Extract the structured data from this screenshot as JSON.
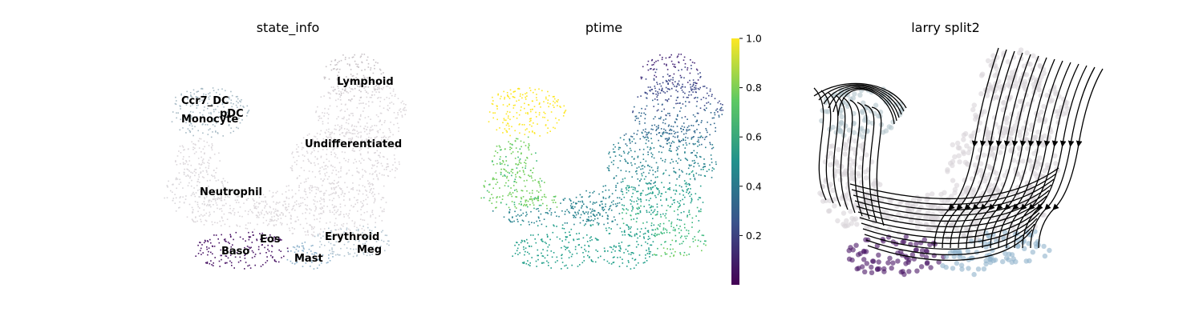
{
  "chart_data": [
    {
      "type": "scatter",
      "embedding": "UMAP",
      "title": "state_info",
      "color_by": "category",
      "labels": [
        {
          "text": "Lymphoid",
          "color": "#c9c3c7"
        },
        {
          "text": "Ccr7_DC",
          "color": "#a9bcc6"
        },
        {
          "text": "pDC",
          "color": "#a9bcc6"
        },
        {
          "text": "Monocyte",
          "color": "#a9bcc6"
        },
        {
          "text": "Undifferentiated",
          "color": "#dcd7db"
        },
        {
          "text": "Neutrophil",
          "color": "#dcd9dc"
        },
        {
          "text": "Eos",
          "color": "#7a4f8f"
        },
        {
          "text": "Erythroid",
          "color": "#b4c6d2"
        },
        {
          "text": "Baso",
          "color": "#4a1566"
        },
        {
          "text": "Mast",
          "color": "#8fb3cc"
        },
        {
          "text": "Meg",
          "color": "#a9c1d1"
        }
      ],
      "axes": "off"
    },
    {
      "type": "scatter",
      "embedding": "UMAP",
      "title": "ptime",
      "color_by": "continuous",
      "colormap": "viridis",
      "colorbar": {
        "min": 0.0,
        "max": 1.0,
        "ticks": [
          "0.2",
          "0.4",
          "0.6",
          "0.8",
          "1.0"
        ]
      },
      "axes": "off"
    },
    {
      "type": "scatter",
      "embedding": "UMAP",
      "title": "larry split2",
      "overlay": "velocity streamlines",
      "stream_color": "#000000",
      "axes": "off"
    }
  ],
  "colors": {
    "grey_cells": "#dcd7db",
    "dc_cells": "#a9bcc6",
    "baso_cells": "#4a1566",
    "viridis": [
      "#440154",
      "#3b528b",
      "#21918c",
      "#5ec962",
      "#fde725"
    ]
  }
}
